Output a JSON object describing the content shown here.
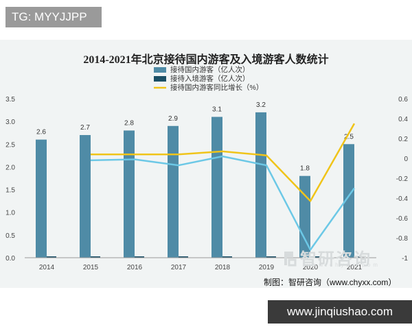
{
  "tag": "TG: MYYJJPP",
  "credit": "制图：智研咨询（www.chyxx.com）",
  "watermark": {
    "cn": "智研咨询",
    "url": "www.chyxx.com"
  },
  "site": "www.jinqiushao.com",
  "colors": {
    "domestic": "#4f8ba6",
    "inbound": "#1b4f66",
    "growth": "#f0c419",
    "light_line": "#6cc8e6"
  },
  "chart_data": {
    "type": "bar",
    "title": "2014-2021年北京接待国内游客及入境游客人数统计",
    "categories": [
      "2014",
      "2015",
      "2016",
      "2017",
      "2018",
      "2019",
      "2020",
      "2021"
    ],
    "series": [
      {
        "name": "接待国内游客（亿人次）",
        "type": "bar",
        "axis": "left",
        "values": [
          2.6,
          2.7,
          2.8,
          2.9,
          3.1,
          3.2,
          1.8,
          2.5
        ],
        "labels": [
          "2.6",
          "2.7",
          "2.8",
          "2.9",
          "3.1",
          "3.2",
          "1.8",
          "2.5"
        ]
      },
      {
        "name": "接待入境游客（亿人次）",
        "type": "bar",
        "axis": "left",
        "values": [
          0.02,
          0.02,
          0.02,
          0.02,
          0.02,
          0.02,
          0.005,
          0.005
        ]
      },
      {
        "name": "接待国内游客同比增长（%）",
        "type": "line",
        "axis": "right",
        "values": [
          null,
          0.04,
          0.04,
          0.04,
          0.07,
          0.03,
          -0.43,
          0.35
        ]
      },
      {
        "name": "",
        "type": "line",
        "axis": "right",
        "values": [
          null,
          -0.02,
          -0.01,
          -0.07,
          0.02,
          -0.07,
          -0.92,
          -0.3
        ]
      }
    ],
    "left_axis": {
      "min": 0,
      "max": 3.5,
      "ticks": [
        "0.0",
        "0.5",
        "1.0",
        "1.5",
        "2.0",
        "2.5",
        "3.0",
        "3.5"
      ]
    },
    "right_axis": {
      "min": -1,
      "max": 0.6,
      "ticks": [
        "-1",
        "-0.8",
        "-0.6",
        "-0.4",
        "-0.2",
        "0",
        "0.2",
        "0.4",
        "0.6"
      ]
    },
    "grid": false,
    "legend": "top-center"
  }
}
